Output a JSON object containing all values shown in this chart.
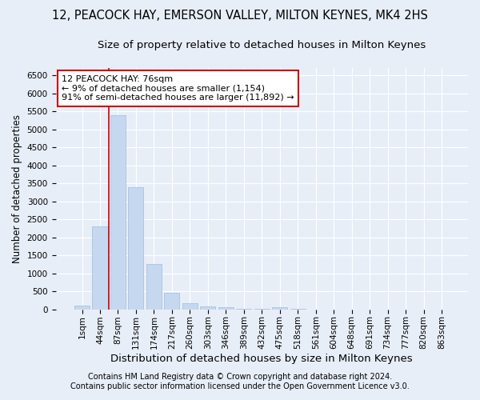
{
  "title": "12, PEACOCK HAY, EMERSON VALLEY, MILTON KEYNES, MK4 2HS",
  "subtitle": "Size of property relative to detached houses in Milton Keynes",
  "xlabel": "Distribution of detached houses by size in Milton Keynes",
  "ylabel": "Number of detached properties",
  "bar_color": "#c5d8f0",
  "bar_edge_color": "#a0bcd8",
  "categories": [
    "1sqm",
    "44sqm",
    "87sqm",
    "131sqm",
    "174sqm",
    "217sqm",
    "260sqm",
    "303sqm",
    "346sqm",
    "389sqm",
    "432sqm",
    "475sqm",
    "518sqm",
    "561sqm",
    "604sqm",
    "648sqm",
    "691sqm",
    "734sqm",
    "777sqm",
    "820sqm",
    "863sqm"
  ],
  "values": [
    100,
    2300,
    5400,
    3400,
    1250,
    450,
    175,
    75,
    50,
    10,
    5,
    50,
    5,
    0,
    0,
    0,
    0,
    0,
    0,
    0,
    0
  ],
  "ylim": [
    0,
    6700
  ],
  "yticks": [
    0,
    500,
    1000,
    1500,
    2000,
    2500,
    3000,
    3500,
    4000,
    4500,
    5000,
    5500,
    6000,
    6500
  ],
  "property_line_x": 1.5,
  "annotation_text": "12 PEACOCK HAY: 76sqm\n← 9% of detached houses are smaller (1,154)\n91% of semi-detached houses are larger (11,892) →",
  "annotation_box_color": "#ffffff",
  "annotation_box_edge": "#cc0000",
  "property_line_color": "#cc0000",
  "background_color": "#e8eef8",
  "plot_background": "#e8eef8",
  "footer_line1": "Contains HM Land Registry data © Crown copyright and database right 2024.",
  "footer_line2": "Contains public sector information licensed under the Open Government Licence v3.0.",
  "title_fontsize": 10.5,
  "subtitle_fontsize": 9.5,
  "xlabel_fontsize": 9.5,
  "ylabel_fontsize": 8.5,
  "tick_fontsize": 7.5,
  "annotation_fontsize": 8,
  "footer_fontsize": 7
}
